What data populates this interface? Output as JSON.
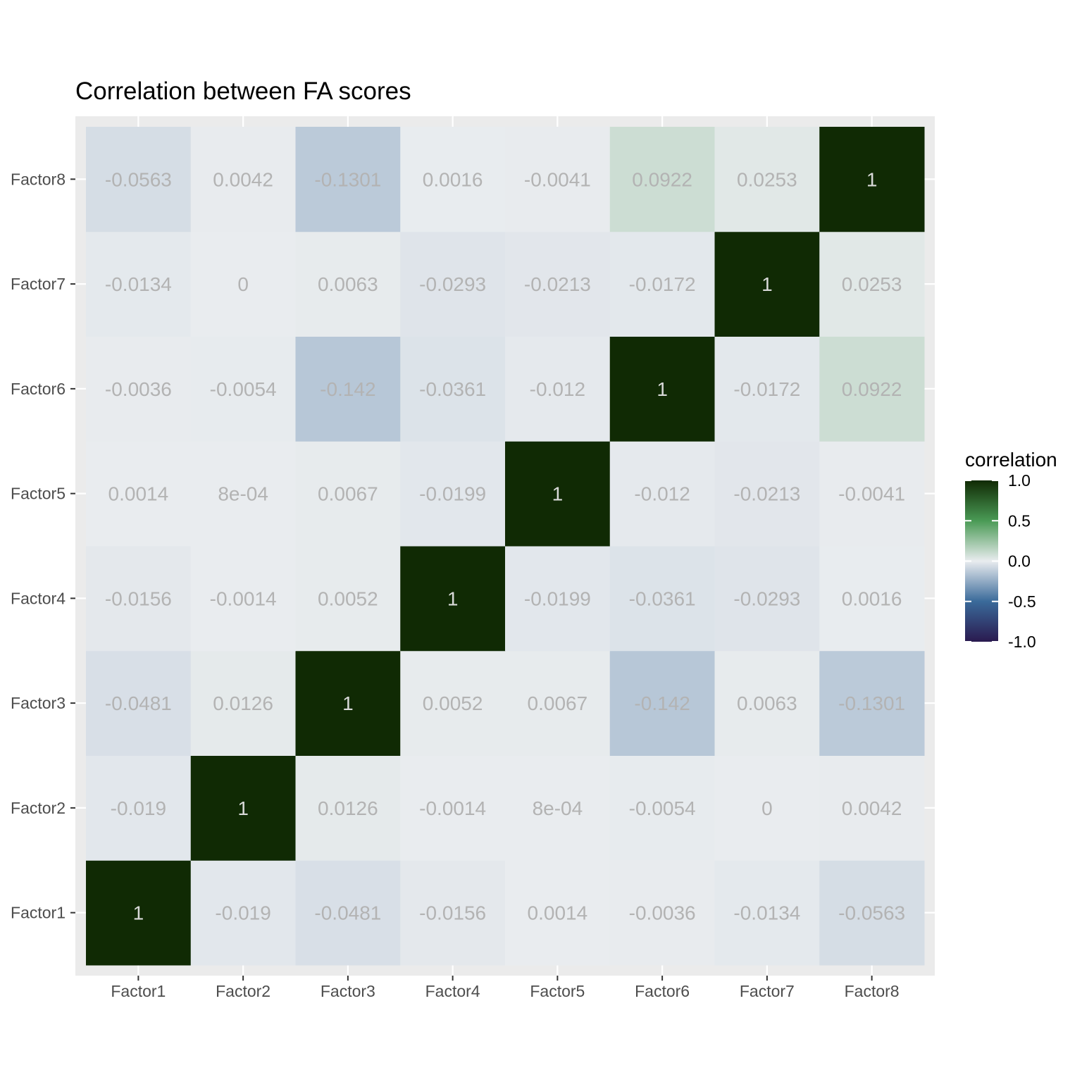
{
  "chart_data": {
    "type": "heatmap",
    "title": "Correlation between FA scores",
    "xlabel": "",
    "ylabel": "",
    "x_categories": [
      "Factor1",
      "Factor2",
      "Factor3",
      "Factor4",
      "Factor5",
      "Factor6",
      "Factor7",
      "Factor8"
    ],
    "y_categories": [
      "Factor1",
      "Factor2",
      "Factor3",
      "Factor4",
      "Factor5",
      "Factor6",
      "Factor7",
      "Factor8"
    ],
    "values": [
      [
        1,
        -0.019,
        -0.0481,
        -0.0156,
        0.0014,
        -0.0036,
        -0.0134,
        -0.0563
      ],
      [
        -0.019,
        1,
        0.0126,
        -0.0014,
        0.0008,
        -0.0054,
        0,
        0.0042
      ],
      [
        -0.0481,
        0.0126,
        1,
        0.0052,
        0.0067,
        -0.142,
        0.0063,
        -0.1301
      ],
      [
        -0.0156,
        -0.0014,
        0.0052,
        1,
        -0.0199,
        -0.0361,
        -0.0293,
        0.0016
      ],
      [
        0.0014,
        0.0008,
        0.0067,
        -0.0199,
        1,
        -0.012,
        -0.0213,
        -0.0041
      ],
      [
        -0.0036,
        -0.0054,
        -0.142,
        -0.0361,
        -0.012,
        1,
        -0.0172,
        0.0922
      ],
      [
        -0.0134,
        0,
        0.0063,
        -0.0293,
        -0.0213,
        -0.0172,
        1,
        0.0253
      ],
      [
        -0.0563,
        0.0042,
        -0.1301,
        0.0016,
        -0.0041,
        0.0922,
        0.0253,
        1
      ]
    ],
    "labels": [
      [
        "1",
        "-0.019",
        "-0.0481",
        "-0.0156",
        "0.0014",
        "-0.0036",
        "-0.0134",
        "-0.0563"
      ],
      [
        "-0.019",
        "1",
        "0.0126",
        "-0.0014",
        "8e-04",
        "-0.0054",
        "0",
        "0.0042"
      ],
      [
        "-0.0481",
        "0.0126",
        "1",
        "0.0052",
        "0.0067",
        "-0.142",
        "0.0063",
        "-0.1301"
      ],
      [
        "-0.0156",
        "-0.0014",
        "0.0052",
        "1",
        "-0.0199",
        "-0.0361",
        "-0.0293",
        "0.0016"
      ],
      [
        "0.0014",
        "8e-04",
        "0.0067",
        "-0.0199",
        "1",
        "-0.012",
        "-0.0213",
        "-0.0041"
      ],
      [
        "-0.0036",
        "-0.0054",
        "-0.142",
        "-0.0361",
        "-0.012",
        "1",
        "-0.0172",
        "0.0922"
      ],
      [
        "-0.0134",
        "0",
        "0.0063",
        "-0.0293",
        "-0.0213",
        "-0.0172",
        "1",
        "0.0253"
      ],
      [
        "-0.0563",
        "0.0042",
        "-0.1301",
        "0.0016",
        "-0.0041",
        "0.0922",
        "0.0253",
        "1"
      ]
    ],
    "legend": {
      "title": "correlation",
      "placement": "right",
      "ticks": [
        1.0,
        0.5,
        0.0,
        -0.5,
        -1.0
      ],
      "tick_labels": [
        "1.0",
        "0.5",
        "0.0",
        "-0.5",
        "-1.0"
      ],
      "range": [
        -1,
        1
      ]
    },
    "color_scale": {
      "negative": "#2a1a4f",
      "mid_negative": "#3a6a9a",
      "center": "#e9ecef",
      "mid_positive": "#4a9a55",
      "positive": "#102a04"
    },
    "panel_background": "#ebebeb",
    "grid": true
  }
}
